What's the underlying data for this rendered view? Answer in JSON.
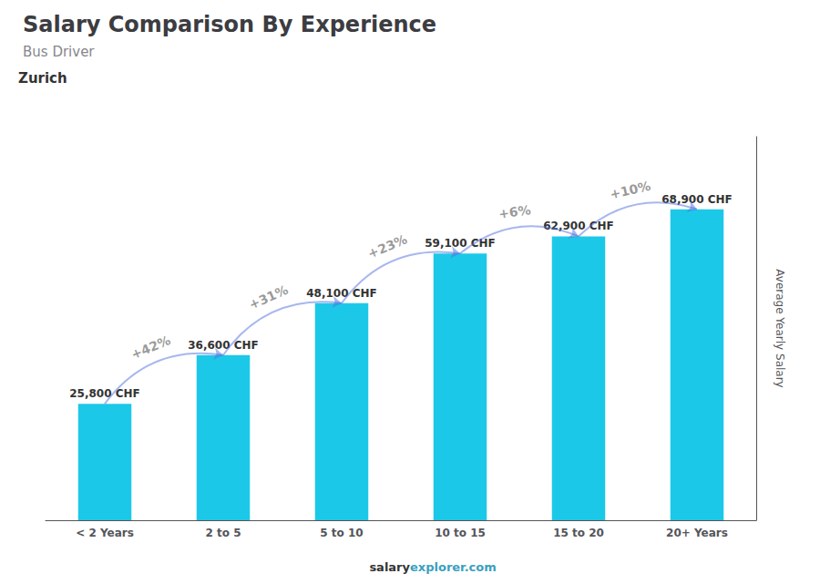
{
  "chart_data": {
    "type": "bar",
    "title": "Salary Comparison By Experience",
    "subtitle": "Bus Driver",
    "annotations": [
      "Zurich",
      "salary",
      "explorer.com"
    ],
    "ylabel": "Average Yearly Salary",
    "categories": [
      "< 2 Years",
      "2 to 5",
      "5 to 10",
      "10 to 15",
      "15 to 20",
      "20+ Years"
    ],
    "values": [
      25800,
      36600,
      48100,
      59100,
      62900,
      68900
    ],
    "value_labels": [
      "25,800 CHF",
      "36,600 CHF",
      "48,100 CHF",
      "59,100 CHF",
      "62,900 CHF",
      "68,900 CHF"
    ],
    "data_labels": true,
    "change_labels": [
      "+42%",
      "+31%",
      "+23%",
      "+6%",
      "+10%"
    ],
    "color": "#1cc8e8",
    "ylim": [
      0,
      85000
    ],
    "grid": false,
    "tick_labels": "x"
  }
}
